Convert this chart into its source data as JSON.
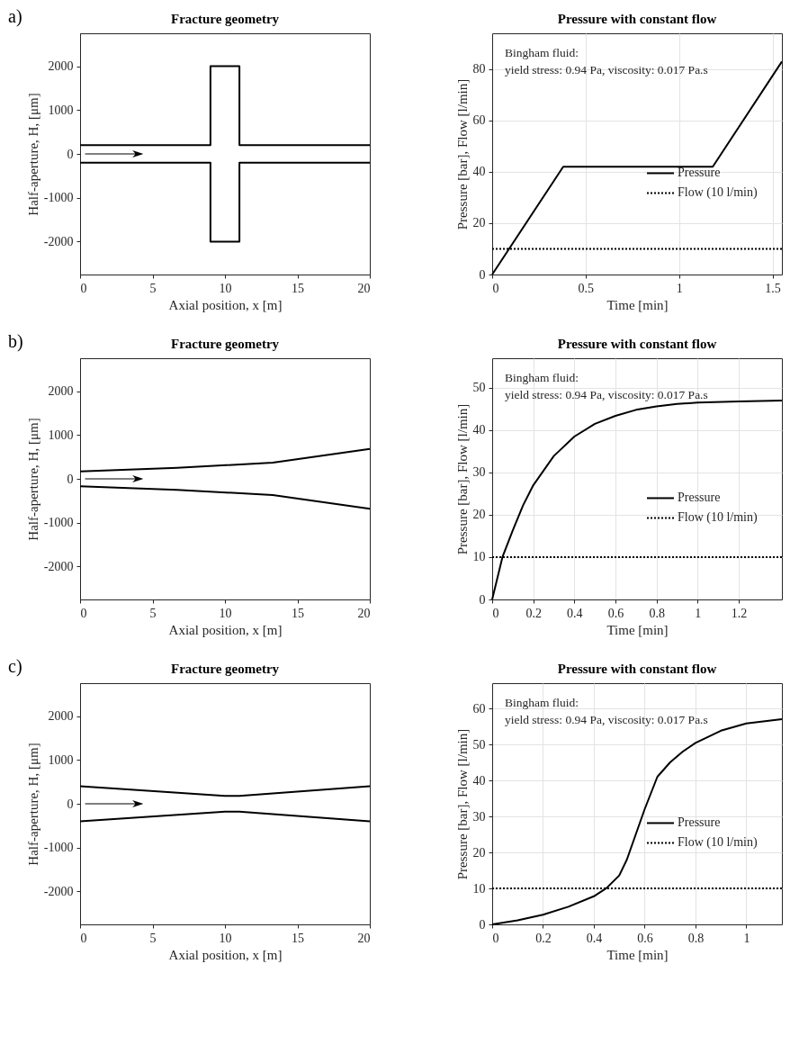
{
  "chart_data": [
    {
      "type": "line",
      "title": "Fracture geometry",
      "xlabel": "Axial position, x [m]",
      "ylabel": "Half-aperture, H, [μm]",
      "annotations": [
        "a)"
      ],
      "xlim": [
        0,
        20
      ],
      "xticks": [
        0,
        5,
        10,
        15,
        20
      ],
      "ylim": [
        -2750,
        2750
      ],
      "yticks": [
        -2000,
        -1000,
        0,
        1000,
        2000
      ],
      "grid": false,
      "legend": false,
      "series": [
        {
          "color": "#000000",
          "x": [
            0,
            9,
            9,
            11,
            11,
            20
          ],
          "values": [
            200,
            200,
            2000,
            2000,
            200,
            200
          ]
        },
        {
          "color": "#000000",
          "x": [
            0,
            9,
            9,
            11,
            11,
            20
          ],
          "values": [
            -200,
            -200,
            -2000,
            -2000,
            -200,
            -200
          ]
        }
      ]
    },
    {
      "type": "line",
      "title": "Pressure with constant flow",
      "xlabel": "Time [min]",
      "ylabel": "Pressure [bar], Flow [l/min]",
      "annotations": [
        "Bingham fluid:",
        "yield stress: 0.94 Pa, viscosity: 0.017 Pa.s"
      ],
      "xlim": [
        0,
        1.55
      ],
      "xticks": [
        0,
        0.5,
        1,
        1.5
      ],
      "ylim": [
        0,
        94
      ],
      "yticks": [
        0,
        20,
        40,
        60,
        80
      ],
      "grid": true,
      "legend": "right",
      "series": [
        {
          "name": "Pressure",
          "color": "#000000",
          "line_style": "solid",
          "x": [
            0,
            0.38,
            1.18,
            1.55
          ],
          "values": [
            0,
            42,
            42,
            83
          ]
        },
        {
          "name": "Flow (10 l/min)",
          "color": "#000000",
          "line_style": "dotted",
          "x": [
            0,
            1.55
          ],
          "values": [
            10,
            10
          ]
        }
      ]
    },
    {
      "type": "line",
      "title": "Fracture geometry",
      "xlabel": "Axial position, x [m]",
      "ylabel": "Half-aperture, H, [μm]",
      "annotations": [
        "b)"
      ],
      "xlim": [
        0,
        20
      ],
      "xticks": [
        0,
        5,
        10,
        15,
        20
      ],
      "ylim": [
        -2750,
        2750
      ],
      "yticks": [
        -2000,
        -1000,
        0,
        1000,
        2000
      ],
      "grid": false,
      "legend": false,
      "series": [
        {
          "color": "#000000",
          "x": [
            0,
            6.7,
            13.3,
            20
          ],
          "values": [
            170,
            250,
            370,
            680
          ]
        },
        {
          "color": "#000000",
          "x": [
            0,
            6.7,
            13.3,
            20
          ],
          "values": [
            -170,
            -250,
            -370,
            -680
          ]
        }
      ]
    },
    {
      "type": "line",
      "title": "Pressure with constant flow",
      "xlabel": "Time [min]",
      "ylabel": "Pressure [bar], Flow [l/min]",
      "annotations": [
        "Bingham fluid:",
        "yield stress: 0.94 Pa, viscosity: 0.017 Pa.s"
      ],
      "xlim": [
        0,
        1.41
      ],
      "xticks": [
        0,
        0.2,
        0.4,
        0.6,
        0.8,
        1,
        1.2
      ],
      "ylim": [
        0,
        57
      ],
      "yticks": [
        0,
        10,
        20,
        30,
        40,
        50
      ],
      "grid": true,
      "legend": "right",
      "series": [
        {
          "name": "Pressure",
          "color": "#000000",
          "line_style": "solid",
          "x": [
            0,
            0.05,
            0.1,
            0.15,
            0.2,
            0.3,
            0.4,
            0.5,
            0.6,
            0.7,
            0.8,
            0.9,
            1,
            1.2,
            1.41
          ],
          "values": [
            0,
            10,
            16.3,
            22.2,
            27,
            33.9,
            38.5,
            41.5,
            43.4,
            44.8,
            45.6,
            46.2,
            46.5,
            46.8,
            47
          ]
        },
        {
          "name": "Flow (10 l/min)",
          "color": "#000000",
          "line_style": "dotted",
          "x": [
            0,
            1.41
          ],
          "values": [
            10,
            10
          ]
        }
      ]
    },
    {
      "type": "line",
      "title": "Fracture geometry",
      "xlabel": "Axial position, x [m]",
      "ylabel": "Half-aperture, H, [μm]",
      "annotations": [
        "c)"
      ],
      "xlim": [
        0,
        20
      ],
      "xticks": [
        0,
        5,
        10,
        15,
        20
      ],
      "ylim": [
        -2750,
        2750
      ],
      "yticks": [
        -2000,
        -1000,
        0,
        1000,
        2000
      ],
      "grid": false,
      "legend": false,
      "series": [
        {
          "color": "#000000",
          "x": [
            0,
            10,
            11,
            20
          ],
          "values": [
            400,
            180,
            180,
            400
          ]
        },
        {
          "color": "#000000",
          "x": [
            0,
            10,
            11,
            20
          ],
          "values": [
            -400,
            -180,
            -180,
            -400
          ]
        }
      ]
    },
    {
      "type": "line",
      "title": "Pressure with constant flow",
      "xlabel": "Time [min]",
      "ylabel": "Pressure [bar], Flow [l/min]",
      "annotations": [
        "Bingham fluid:",
        "yield stress: 0.94 Pa, viscosity: 0.017 Pa.s"
      ],
      "xlim": [
        0,
        1.14
      ],
      "xticks": [
        0,
        0.2,
        0.4,
        0.6,
        0.8,
        1
      ],
      "ylim": [
        0,
        67
      ],
      "yticks": [
        0,
        10,
        20,
        30,
        40,
        50,
        60
      ],
      "grid": true,
      "legend": "right",
      "series": [
        {
          "name": "Pressure",
          "color": "#000000",
          "line_style": "solid",
          "x": [
            0,
            0.1,
            0.2,
            0.3,
            0.4,
            0.45,
            0.5,
            0.53,
            0.56,
            0.6,
            0.65,
            0.7,
            0.75,
            0.8,
            0.9,
            1,
            1.14
          ],
          "values": [
            0,
            1.1,
            2.7,
            4.9,
            7.8,
            10.1,
            13.6,
            18,
            24,
            32,
            41,
            45,
            48,
            50.4,
            53.8,
            55.8,
            57
          ]
        },
        {
          "name": "Flow (10 l/min)",
          "color": "#000000",
          "line_style": "dotted",
          "x": [
            0,
            1.14
          ],
          "values": [
            10,
            10
          ]
        }
      ]
    }
  ]
}
